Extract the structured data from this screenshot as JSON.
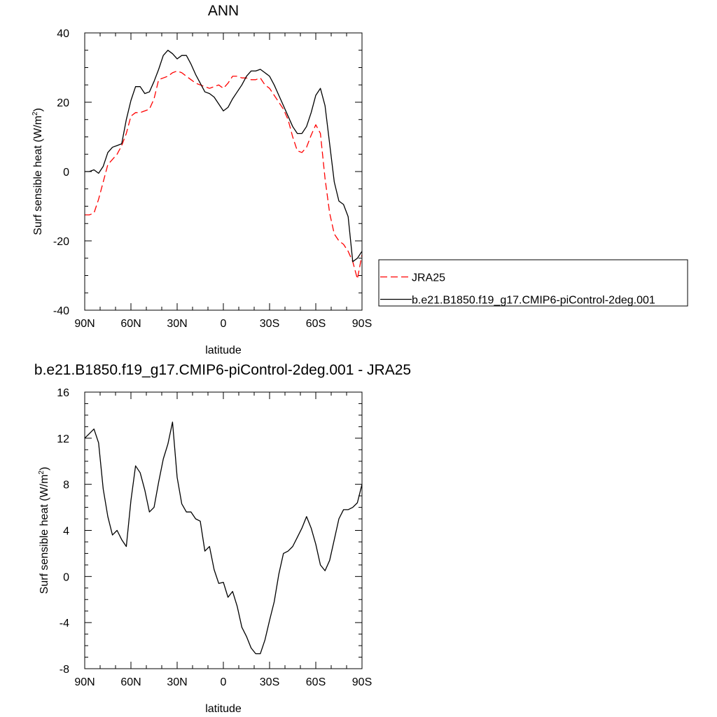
{
  "chart_data": [
    {
      "type": "line",
      "title": "ANN",
      "xlabel": "latitude",
      "ylabel": "Surf sensible heat (W/m",
      "ylabel_sup": "2",
      "ylabel_close": ")",
      "xlim": [
        90,
        -90
      ],
      "ylim": [
        -40,
        40
      ],
      "xticks": [
        {
          "value": 90,
          "label": "90N"
        },
        {
          "value": 60,
          "label": "60N"
        },
        {
          "value": 30,
          "label": "30N"
        },
        {
          "value": 0,
          "label": "0"
        },
        {
          "value": -30,
          "label": "30S"
        },
        {
          "value": -60,
          "label": "60S"
        },
        {
          "value": -90,
          "label": "90S"
        }
      ],
      "yticks": [
        {
          "value": 40,
          "label": "40"
        },
        {
          "value": 20,
          "label": "20"
        },
        {
          "value": 0,
          "label": "0"
        },
        {
          "value": -20,
          "label": "-20"
        },
        {
          "value": -40,
          "label": "-40"
        }
      ],
      "legend": {
        "placement": "right"
      },
      "series": [
        {
          "name": "JRA25",
          "color": "#ff0000",
          "style": "dashed",
          "points": [
            [
              90,
              -12.5
            ],
            [
              87,
              -12.5
            ],
            [
              84,
              -12
            ],
            [
              81,
              -8
            ],
            [
              78,
              -3
            ],
            [
              75,
              2
            ],
            [
              72,
              3.5
            ],
            [
              69,
              5
            ],
            [
              66,
              7.5
            ],
            [
              63,
              11
            ],
            [
              60,
              16
            ],
            [
              57,
              17
            ],
            [
              54,
              17
            ],
            [
              51,
              17.5
            ],
            [
              48,
              18
            ],
            [
              45,
              21
            ],
            [
              42,
              26.5
            ],
            [
              39,
              27
            ],
            [
              36,
              27.5
            ],
            [
              33,
              28.5
            ],
            [
              30,
              29
            ],
            [
              27,
              28.5
            ],
            [
              24,
              27.5
            ],
            [
              21,
              26.5
            ],
            [
              18,
              25.5
            ],
            [
              15,
              25
            ],
            [
              12,
              24.5
            ],
            [
              9,
              24
            ],
            [
              6,
              24.5
            ],
            [
              3,
              25
            ],
            [
              0,
              24
            ],
            [
              -3,
              25.5
            ],
            [
              -6,
              27.5
            ],
            [
              -9,
              27.5
            ],
            [
              -12,
              27
            ],
            [
              -15,
              27
            ],
            [
              -18,
              26.5
            ],
            [
              -21,
              26.5
            ],
            [
              -24,
              27
            ],
            [
              -27,
              25
            ],
            [
              -30,
              24
            ],
            [
              -33,
              22
            ],
            [
              -36,
              20
            ],
            [
              -39,
              18
            ],
            [
              -42,
              15
            ],
            [
              -45,
              10
            ],
            [
              -48,
              6
            ],
            [
              -51,
              5.5
            ],
            [
              -54,
              7
            ],
            [
              -57,
              10.5
            ],
            [
              -60,
              13.5
            ],
            [
              -63,
              11
            ],
            [
              -66,
              -2
            ],
            [
              -69,
              -12
            ],
            [
              -72,
              -18
            ],
            [
              -75,
              -20
            ],
            [
              -78,
              -21
            ],
            [
              -81,
              -23
            ],
            [
              -84,
              -26
            ],
            [
              -87,
              -31
            ],
            [
              -90,
              -24
            ]
          ]
        },
        {
          "name": "b.e21.B1850.f19_g17.CMIP6-piControl-2deg.001",
          "color": "#000000",
          "style": "solid",
          "points": [
            [
              90,
              0
            ],
            [
              87,
              0
            ],
            [
              84,
              0.5
            ],
            [
              81,
              -0.5
            ],
            [
              78,
              1.5
            ],
            [
              75,
              5.5
            ],
            [
              72,
              7
            ],
            [
              69,
              7.5
            ],
            [
              66,
              8
            ],
            [
              63,
              15
            ],
            [
              60,
              20.5
            ],
            [
              57,
              24.5
            ],
            [
              54,
              24.5
            ],
            [
              51,
              22.5
            ],
            [
              48,
              23
            ],
            [
              45,
              26
            ],
            [
              42,
              29.5
            ],
            [
              39,
              33.5
            ],
            [
              36,
              35
            ],
            [
              33,
              34
            ],
            [
              30,
              32.5
            ],
            [
              27,
              33.5
            ],
            [
              24,
              33.5
            ],
            [
              21,
              31
            ],
            [
              18,
              28
            ],
            [
              15,
              25.5
            ],
            [
              12,
              23
            ],
            [
              9,
              22.5
            ],
            [
              6,
              21.5
            ],
            [
              3,
              19.5
            ],
            [
              0,
              17.5
            ],
            [
              -3,
              18.5
            ],
            [
              -6,
              21
            ],
            [
              -9,
              23
            ],
            [
              -12,
              25
            ],
            [
              -15,
              27.5
            ],
            [
              -18,
              29
            ],
            [
              -21,
              29
            ],
            [
              -24,
              29.5
            ],
            [
              -27,
              28.5
            ],
            [
              -30,
              27.5
            ],
            [
              -33,
              25
            ],
            [
              -36,
              22
            ],
            [
              -39,
              19
            ],
            [
              -42,
              16
            ],
            [
              -45,
              13
            ],
            [
              -48,
              11
            ],
            [
              -51,
              11
            ],
            [
              -54,
              13
            ],
            [
              -57,
              17
            ],
            [
              -60,
              22
            ],
            [
              -63,
              24
            ],
            [
              -66,
              19
            ],
            [
              -69,
              8
            ],
            [
              -72,
              -3
            ],
            [
              -75,
              -8.5
            ],
            [
              -78,
              -9.5
            ],
            [
              -81,
              -13
            ],
            [
              -84,
              -26
            ],
            [
              -87,
              -25
            ],
            [
              -90,
              -23
            ]
          ]
        }
      ]
    },
    {
      "type": "line",
      "title": "b.e21.B1850.f19_g17.CMIP6-piControl-2deg.001 - JRA25",
      "xlabel": "latitude",
      "ylabel": "Surf sensible heat (W/m",
      "ylabel_sup": "2",
      "ylabel_close": ")",
      "xlim": [
        90,
        -90
      ],
      "ylim": [
        -8,
        16
      ],
      "xticks": [
        {
          "value": 90,
          "label": "90N"
        },
        {
          "value": 60,
          "label": "60N"
        },
        {
          "value": 30,
          "label": "30N"
        },
        {
          "value": 0,
          "label": "0"
        },
        {
          "value": -30,
          "label": "30S"
        },
        {
          "value": -60,
          "label": "60S"
        },
        {
          "value": -90,
          "label": "90S"
        }
      ],
      "yticks": [
        {
          "value": 16,
          "label": "16"
        },
        {
          "value": 12,
          "label": "12"
        },
        {
          "value": 8,
          "label": "8"
        },
        {
          "value": 4,
          "label": "4"
        },
        {
          "value": 0,
          "label": "0"
        },
        {
          "value": -4,
          "label": "-4"
        },
        {
          "value": -8,
          "label": "-8"
        }
      ],
      "series": [
        {
          "color": "#000000",
          "style": "solid",
          "points": [
            [
              90,
              12
            ],
            [
              87,
              12.4
            ],
            [
              84,
              12.8
            ],
            [
              81,
              11.6
            ],
            [
              78,
              7.6
            ],
            [
              75,
              5.2
            ],
            [
              72,
              3.6
            ],
            [
              69,
              4
            ],
            [
              66,
              3.2
            ],
            [
              63,
              2.6
            ],
            [
              60,
              6.6
            ],
            [
              57,
              9.6
            ],
            [
              54,
              9
            ],
            [
              51,
              7.5
            ],
            [
              48,
              5.6
            ],
            [
              45,
              6
            ],
            [
              42,
              8.2
            ],
            [
              39,
              10.2
            ],
            [
              36,
              11.5
            ],
            [
              33,
              13.4
            ],
            [
              30,
              8.6
            ],
            [
              27,
              6.3
            ],
            [
              24,
              5.6
            ],
            [
              21,
              5.6
            ],
            [
              18,
              5
            ],
            [
              15,
              4.8
            ],
            [
              12,
              2.2
            ],
            [
              9,
              2.6
            ],
            [
              6,
              0.6
            ],
            [
              3,
              -0.6
            ],
            [
              0,
              -0.5
            ],
            [
              -3,
              -1.8
            ],
            [
              -6,
              -1.3
            ],
            [
              -9,
              -2.6
            ],
            [
              -12,
              -4.4
            ],
            [
              -15,
              -5.2
            ],
            [
              -18,
              -6.2
            ],
            [
              -21,
              -6.7
            ],
            [
              -24,
              -6.7
            ],
            [
              -27,
              -5.5
            ],
            [
              -30,
              -3.8
            ],
            [
              -33,
              -2.2
            ],
            [
              -36,
              0.2
            ],
            [
              -39,
              2
            ],
            [
              -42,
              2.2
            ],
            [
              -45,
              2.6
            ],
            [
              -48,
              3.4
            ],
            [
              -51,
              4.2
            ],
            [
              -54,
              5.2
            ],
            [
              -57,
              4.2
            ],
            [
              -60,
              2.8
            ],
            [
              -63,
              1
            ],
            [
              -66,
              0.5
            ],
            [
              -69,
              1.4
            ],
            [
              -72,
              3.2
            ],
            [
              -75,
              5
            ],
            [
              -78,
              5.8
            ],
            [
              -81,
              5.8
            ],
            [
              -84,
              6
            ],
            [
              -87,
              6.4
            ],
            [
              -90,
              8
            ]
          ]
        }
      ]
    }
  ]
}
